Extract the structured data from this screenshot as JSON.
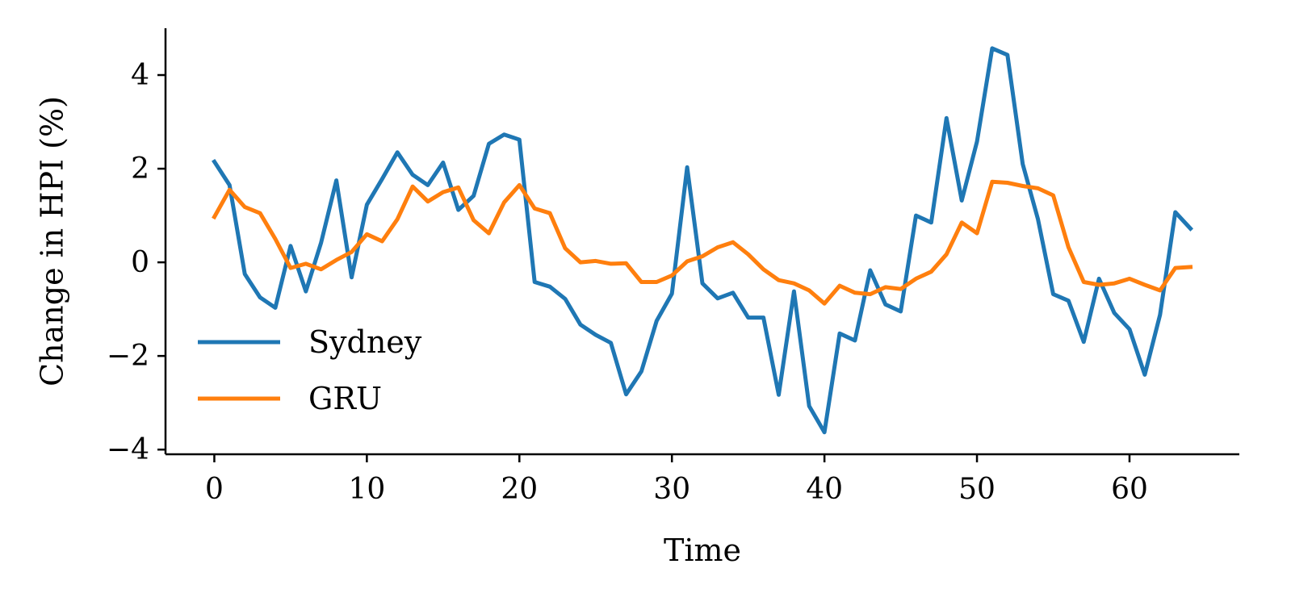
{
  "chart_data": {
    "type": "line",
    "title": "",
    "xlabel": "Time",
    "ylabel": "Change in HPI (%)",
    "xlim": [
      -3.2,
      67.2
    ],
    "ylim": [
      -4.1,
      5.0
    ],
    "xticks": [
      0,
      10,
      20,
      30,
      40,
      50,
      60
    ],
    "yticks": [
      -4,
      -2,
      0,
      2,
      4
    ],
    "xtick_labels": [
      "0",
      "10",
      "20",
      "30",
      "40",
      "50",
      "60"
    ],
    "ytick_labels": [
      "−4",
      "−2",
      "0",
      "2",
      "4"
    ],
    "grid": false,
    "legend_position": "lower-left",
    "series": [
      {
        "name": "Sydney",
        "color": "#1f77b4",
        "x": [
          0,
          1,
          2,
          3,
          4,
          5,
          6,
          7,
          8,
          9,
          10,
          11,
          12,
          13,
          14,
          15,
          16,
          17,
          18,
          19,
          20,
          21,
          22,
          23,
          24,
          25,
          26,
          27,
          28,
          29,
          30,
          31,
          32,
          33,
          34,
          35,
          36,
          37,
          38,
          39,
          40,
          41,
          42,
          43,
          44,
          45,
          46,
          47,
          48,
          49,
          50,
          51,
          52,
          53,
          54,
          55,
          56,
          57,
          58,
          59,
          60,
          61,
          62,
          63,
          64
        ],
        "values": [
          2.15,
          1.65,
          -0.25,
          -0.75,
          -0.97,
          0.35,
          -0.62,
          0.42,
          1.75,
          -0.32,
          1.23,
          1.78,
          2.35,
          1.87,
          1.65,
          2.13,
          1.12,
          1.42,
          2.53,
          2.73,
          2.62,
          -0.42,
          -0.52,
          -0.78,
          -1.33,
          -1.55,
          -1.72,
          -2.82,
          -2.33,
          -1.25,
          -0.67,
          2.03,
          -0.45,
          -0.77,
          -0.65,
          -1.18,
          -1.18,
          -2.83,
          -0.62,
          -3.07,
          -3.63,
          -1.52,
          -1.67,
          -0.17,
          -0.9,
          -1.05,
          1.0,
          0.85,
          3.08,
          1.32,
          2.58,
          4.57,
          4.43,
          2.1,
          0.92,
          -0.68,
          -0.82,
          -1.7,
          -0.35,
          -1.08,
          -1.43,
          -2.4,
          -1.12,
          1.07,
          0.72
        ]
      },
      {
        "name": "GRU",
        "color": "#ff7f0e",
        "x": [
          0,
          1,
          2,
          3,
          4,
          5,
          6,
          7,
          8,
          9,
          10,
          11,
          12,
          13,
          14,
          15,
          16,
          17,
          18,
          19,
          20,
          21,
          22,
          23,
          24,
          25,
          26,
          27,
          28,
          29,
          30,
          31,
          32,
          33,
          34,
          35,
          36,
          37,
          38,
          39,
          40,
          41,
          42,
          43,
          44,
          45,
          46,
          47,
          48,
          49,
          50,
          51,
          52,
          53,
          54,
          55,
          56,
          57,
          58,
          59,
          60,
          61,
          62,
          63,
          64
        ],
        "values": [
          0.97,
          1.55,
          1.18,
          1.05,
          0.5,
          -0.12,
          -0.03,
          -0.15,
          0.05,
          0.22,
          0.6,
          0.45,
          0.92,
          1.62,
          1.3,
          1.5,
          1.6,
          0.9,
          0.62,
          1.28,
          1.65,
          1.15,
          1.05,
          0.3,
          0.0,
          0.03,
          -0.03,
          -0.02,
          -0.42,
          -0.42,
          -0.28,
          0.02,
          0.13,
          0.32,
          0.43,
          0.17,
          -0.15,
          -0.38,
          -0.45,
          -0.6,
          -0.88,
          -0.5,
          -0.65,
          -0.68,
          -0.53,
          -0.57,
          -0.35,
          -0.2,
          0.17,
          0.85,
          0.62,
          1.72,
          1.7,
          1.63,
          1.58,
          1.43,
          0.32,
          -0.42,
          -0.48,
          -0.45,
          -0.35,
          -0.48,
          -0.6,
          -0.12,
          -0.1
        ]
      }
    ]
  }
}
